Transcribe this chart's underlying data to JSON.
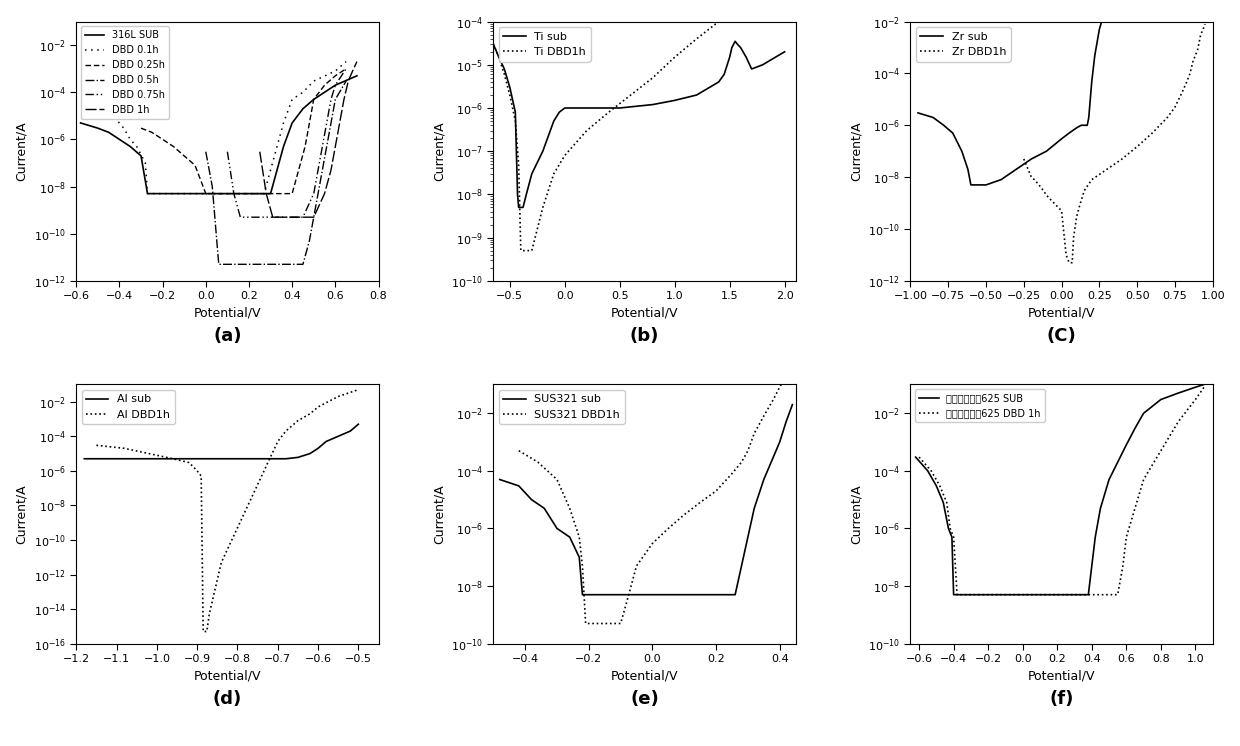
{
  "panels": [
    {
      "label": "(a)",
      "xlim": [
        -0.6,
        0.8
      ],
      "ylim": [
        1e-12,
        0.1
      ],
      "xlabel": "Potential/V",
      "ylabel": "Current/A",
      "legend": [
        "316L SUB",
        "DBD 0.1h",
        "DBD 0.25h",
        "DBD 0.5h",
        "DBD 0.75h",
        "DBD 1h"
      ]
    },
    {
      "label": "(b)",
      "xlim": [
        -0.65,
        2.1
      ],
      "ylim": [
        1e-10,
        0.0001
      ],
      "xlabel": "Potential/V",
      "ylabel": "Current/A",
      "legend": [
        "Ti sub",
        "Ti DBD1h"
      ]
    },
    {
      "label": "(C)",
      "xlim": [
        -1.0,
        1.0
      ],
      "ylim": [
        1e-12,
        0.01
      ],
      "xlabel": "Potential/V",
      "ylabel": "Current/A",
      "legend": [
        "Zr sub",
        "Zr DBD1h"
      ]
    },
    {
      "label": "(d)",
      "xlim": [
        -1.2,
        -0.45
      ],
      "ylim": [
        1e-16,
        0.1
      ],
      "xlabel": "Potential/V",
      "ylabel": "Current/A",
      "legend": [
        "Al sub",
        "Al DBD1h"
      ]
    },
    {
      "label": "(e)",
      "xlim": [
        -0.5,
        0.45
      ],
      "ylim": [
        1e-10,
        0.1
      ],
      "xlabel": "Potential/V",
      "ylabel": "Current/A",
      "legend": [
        "SUS321 sub",
        "SUS321 DBD1h"
      ]
    },
    {
      "label": "(f)",
      "xlim": [
        -0.65,
        1.1
      ],
      "ylim": [
        1e-10,
        0.1
      ],
      "xlabel": "Potential/V",
      "ylabel": "Current/A",
      "legend": [
        "镍基高温合金625 SUB",
        "镍基高温合金625 DBD 1h"
      ]
    }
  ]
}
